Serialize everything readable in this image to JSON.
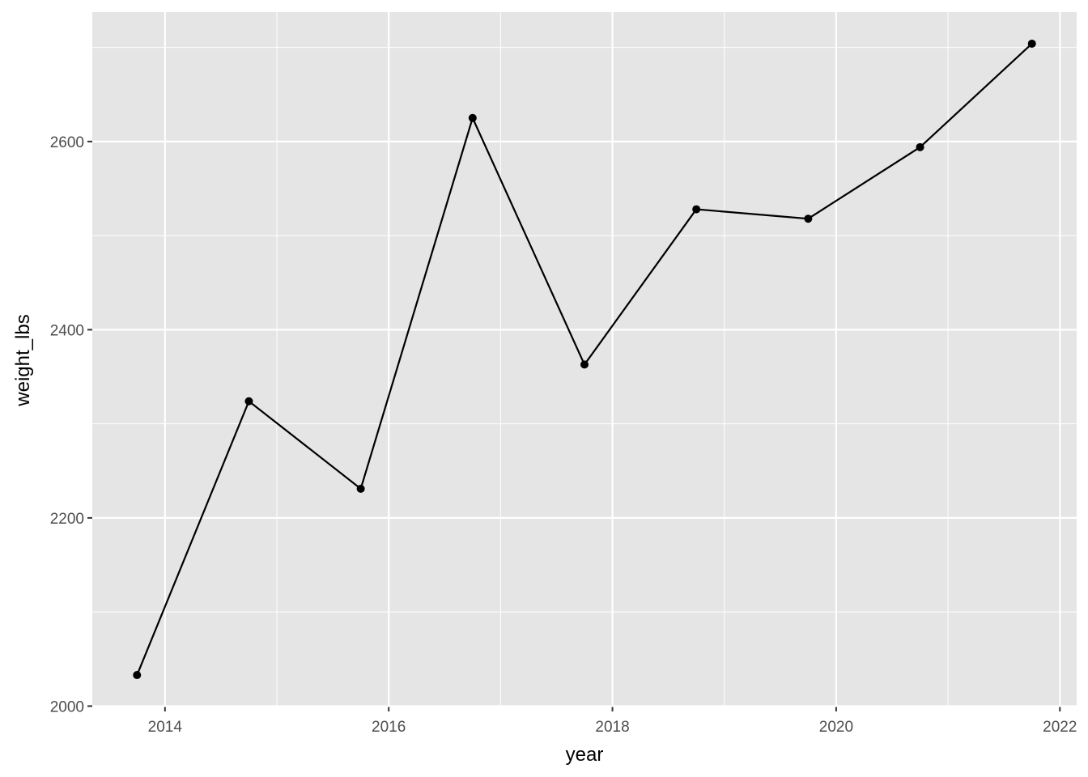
{
  "chart_data": {
    "type": "line",
    "x_label": "year",
    "y_label": "weight_lbs",
    "x": [
      2013.75,
      2014.75,
      2015.75,
      2016.75,
      2017.75,
      2018.75,
      2019.75,
      2020.75,
      2021.75
    ],
    "series": [
      {
        "color": "#000000",
        "values": [
          2033,
          2324,
          2231,
          2625,
          2363,
          2528,
          2518,
          2594,
          2704
        ]
      }
    ],
    "xlim": [
      2013.35,
      2022.15
    ],
    "xticks": [
      2014,
      2016,
      2018,
      2020,
      2022
    ],
    "ylim": [
      1999.5,
      2737.5
    ],
    "yticks": [
      2000,
      2200,
      2400,
      2600
    ],
    "grid": true,
    "panel_color": "#e5e5e5"
  }
}
